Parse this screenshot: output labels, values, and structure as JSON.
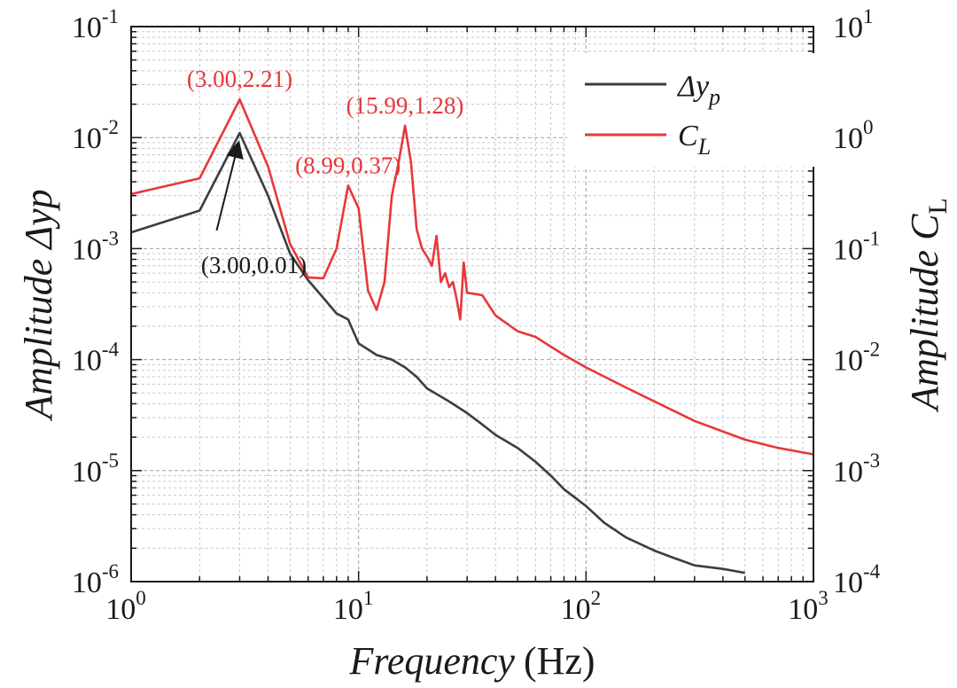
{
  "chart_data": {
    "type": "line",
    "x_scale": "log",
    "y_scale": "log",
    "xlabel": "Frequency",
    "xlabel_unit": "(Hz)",
    "ylabel_left": "Amplitude Δyp",
    "ylabel_right": "Amplitude C",
    "ylabel_right_sub": "L",
    "xlim": [
      1,
      1000
    ],
    "ylim_left": [
      1e-06,
      0.1
    ],
    "ylim_right": [
      0.0001,
      10
    ],
    "x_ticks": [
      {
        "base": "10",
        "exp": "0"
      },
      {
        "base": "10",
        "exp": "1"
      },
      {
        "base": "10",
        "exp": "2"
      },
      {
        "base": "10",
        "exp": "3"
      }
    ],
    "y_ticks_left": [
      {
        "base": "10",
        "exp": "-6"
      },
      {
        "base": "10",
        "exp": "-5"
      },
      {
        "base": "10",
        "exp": "-4"
      },
      {
        "base": "10",
        "exp": "-3"
      },
      {
        "base": "10",
        "exp": "-2"
      },
      {
        "base": "10",
        "exp": "-1"
      }
    ],
    "y_ticks_right": [
      {
        "base": "10",
        "exp": "-4"
      },
      {
        "base": "10",
        "exp": "-3"
      },
      {
        "base": "10",
        "exp": "-2"
      },
      {
        "base": "10",
        "exp": "-1"
      },
      {
        "base": "10",
        "exp": "0"
      },
      {
        "base": "10",
        "exp": "1"
      }
    ],
    "grid": true,
    "legend_position": "top-right",
    "series": [
      {
        "name": "Δy",
        "name_sub": "p",
        "axis": "left",
        "color": "#3d3d3d",
        "x": [
          1,
          2,
          3,
          4,
          5,
          6,
          7,
          8,
          9,
          10,
          12,
          14,
          16,
          18,
          20,
          25,
          30,
          35,
          40,
          50,
          60,
          70,
          80,
          100,
          120,
          150,
          200,
          250,
          300,
          400,
          500
        ],
        "y": [
          0.0014,
          0.0022,
          0.011,
          0.003,
          0.0009,
          0.00052,
          0.00036,
          0.00026,
          0.00023,
          0.00014,
          0.00011,
          0.0001,
          8.5e-05,
          7e-05,
          5.5e-05,
          4.2e-05,
          3.3e-05,
          2.6e-05,
          2.1e-05,
          1.6e-05,
          1.2e-05,
          9e-06,
          6.8e-06,
          4.8e-06,
          3.4e-06,
          2.5e-06,
          1.9e-06,
          1.6e-06,
          1.4e-06,
          1.3e-06,
          1.2e-06
        ]
      },
      {
        "name": "C",
        "name_sub": "L",
        "axis": "right",
        "color": "#e8373a",
        "x": [
          1,
          2,
          3,
          4,
          5,
          6,
          7,
          8,
          9,
          10,
          11,
          12,
          13,
          14,
          15,
          16,
          17,
          18,
          19,
          20,
          21,
          22,
          23,
          24,
          25,
          26,
          27,
          28,
          29,
          30,
          35,
          40,
          50,
          60,
          80,
          100,
          150,
          200,
          300,
          500,
          700,
          1000
        ],
        "y": [
          0.31,
          0.43,
          2.21,
          0.55,
          0.11,
          0.055,
          0.054,
          0.1,
          0.37,
          0.23,
          0.042,
          0.028,
          0.05,
          0.3,
          0.6,
          1.28,
          0.6,
          0.15,
          0.1,
          0.085,
          0.07,
          0.13,
          0.05,
          0.06,
          0.045,
          0.05,
          0.035,
          0.023,
          0.075,
          0.04,
          0.038,
          0.025,
          0.018,
          0.016,
          0.011,
          0.0085,
          0.0056,
          0.0042,
          0.0028,
          0.0019,
          0.0016,
          0.0014
        ]
      }
    ],
    "annotations": [
      {
        "text": "(3.00,2.21)",
        "series": 1,
        "x": 3,
        "y": 2.21,
        "color": "#e8373a"
      },
      {
        "text": "(8.99,0.37)",
        "series": 1,
        "x": 8.99,
        "y": 0.37,
        "color": "#e8373a"
      },
      {
        "text": "(15.99,1.28)",
        "series": 1,
        "x": 15.99,
        "y": 1.28,
        "color": "#e8373a"
      },
      {
        "text": "(3.00,0.01)",
        "series": 0,
        "x": 3,
        "y": 0.011,
        "color": "#1a1a1a",
        "arrow": true
      }
    ]
  }
}
